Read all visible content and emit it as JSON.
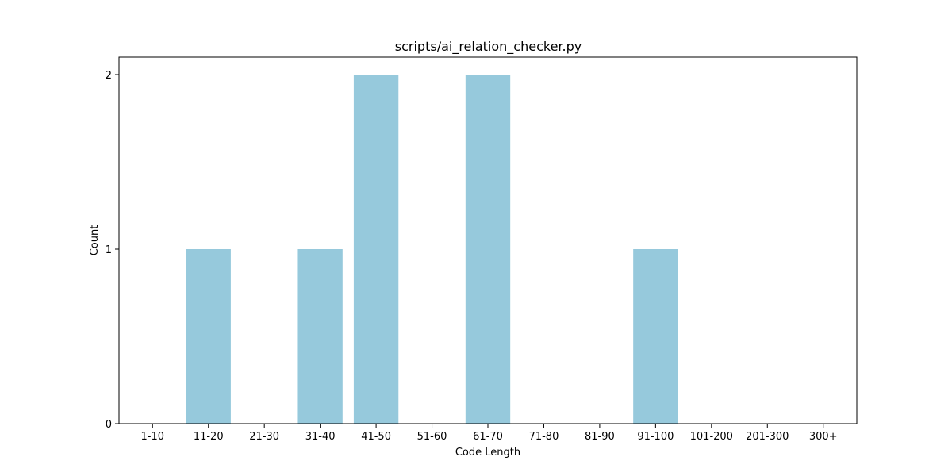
{
  "chart_data": {
    "type": "bar",
    "title": "scripts/ai_relation_checker.py",
    "xlabel": "Code Length",
    "ylabel": "Count",
    "categories": [
      "1-10",
      "11-20",
      "21-30",
      "31-40",
      "41-50",
      "51-60",
      "61-70",
      "71-80",
      "81-90",
      "91-100",
      "101-200",
      "201-300",
      "300+"
    ],
    "values": [
      0,
      1,
      0,
      1,
      2,
      0,
      2,
      0,
      0,
      1,
      0,
      0,
      0
    ],
    "ylim": [
      0,
      2.1
    ],
    "yticks": [
      0,
      1,
      2
    ],
    "bar_color": "#96c9dc",
    "grid": false,
    "legend": "none"
  }
}
